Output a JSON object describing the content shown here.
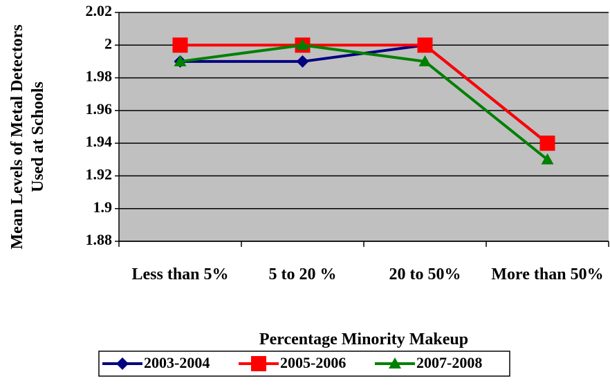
{
  "chart_data": {
    "type": "line",
    "y_label": "Mean Levels of Metal Detectors Used at Schools",
    "x_label": "Percentage Minority Makeup",
    "categories": [
      "Less than 5%",
      "5 to 20 %",
      "20 to 50%",
      "More than 50%"
    ],
    "series": [
      {
        "name": "2003-2004",
        "color": "#000080",
        "marker": "diamond",
        "values": [
          1.99,
          1.99,
          2,
          1.94
        ]
      },
      {
        "name": "2005-2006",
        "color": "#ff0000",
        "marker": "square",
        "values": [
          2,
          2,
          2,
          1.94
        ]
      },
      {
        "name": "2007-2008",
        "color": "#008000",
        "marker": "triangle",
        "values": [
          1.99,
          2,
          1.99,
          1.93
        ]
      }
    ],
    "ylim": [
      1.88,
      2.02
    ],
    "yticks": [
      1.88,
      1.9,
      1.92,
      1.94,
      1.96,
      1.98,
      2,
      2.02
    ],
    "grid": true,
    "plot_background": "#c0c0c0",
    "legend": "bottom"
  }
}
